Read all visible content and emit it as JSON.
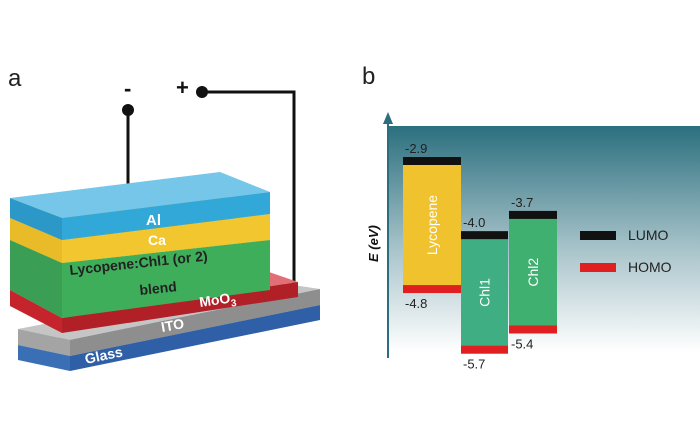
{
  "panel_a": {
    "label": "a",
    "terminals": {
      "minus": "-",
      "plus": "+"
    },
    "layers": {
      "al": "Al",
      "ca": "Ca",
      "blend_line1": "Lycopene:Chl1 (or 2)",
      "blend_line2": "blend",
      "moo3_base": "MoO",
      "moo3_sub": "3",
      "ito": "ITO",
      "glass": "Glass"
    },
    "colors": {
      "al": "#31a8d8",
      "ca": "#f2c62f",
      "blend": "#3fae5a",
      "moo3": "#c6242c",
      "ito": "#9a9a9a",
      "glass": "#3a6fb5"
    }
  },
  "panel_b": {
    "label": "b",
    "y_axis_label": "E (eV)",
    "materials": [
      {
        "name": "Lycopene",
        "lumo": -2.9,
        "homo": -4.8,
        "lumo_label": "-2.9",
        "homo_label": "-4.8",
        "color": "#f0c22e"
      },
      {
        "name": "Chl1",
        "lumo": -4.0,
        "homo": -5.7,
        "lumo_label": "-4.0",
        "homo_label": "-5.7",
        "color": "#3fae82"
      },
      {
        "name": "Chl2",
        "lumo": -3.7,
        "homo": -5.4,
        "lumo_label": "-3.7",
        "homo_label": "-5.4",
        "color": "#40b070"
      }
    ],
    "legend": {
      "lumo": "LUMO",
      "homo": "HOMO"
    },
    "colors": {
      "lumo": "#111111",
      "homo": "#e02020",
      "bg_top": "#2b6f7e",
      "bg_bottom": "#ffffff"
    }
  }
}
